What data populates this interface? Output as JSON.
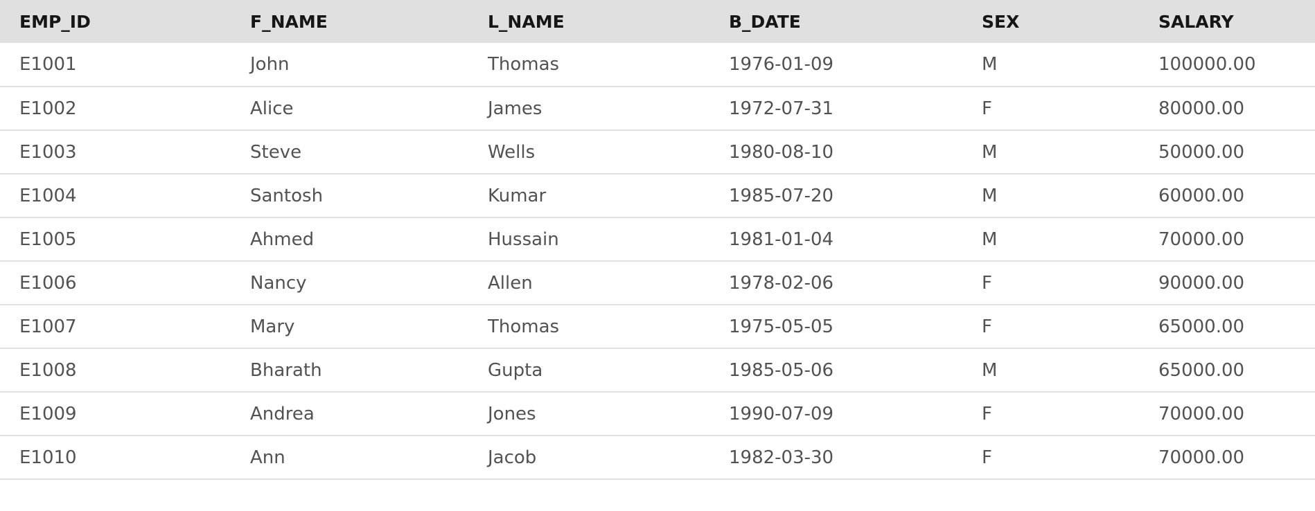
{
  "table": {
    "headers": [
      "EMP_ID",
      "F_NAME",
      "L_NAME",
      "B_DATE",
      "SEX",
      "SALARY"
    ],
    "rows": [
      [
        "E1001",
        "John",
        "Thomas",
        "1976-01-09",
        "M",
        "100000.00"
      ],
      [
        "E1002",
        "Alice",
        "James",
        "1972-07-31",
        "F",
        "80000.00"
      ],
      [
        "E1003",
        "Steve",
        "Wells",
        "1980-08-10",
        "M",
        "50000.00"
      ],
      [
        "E1004",
        "Santosh",
        "Kumar",
        "1985-07-20",
        "M",
        "60000.00"
      ],
      [
        "E1005",
        "Ahmed",
        "Hussain",
        "1981-01-04",
        "M",
        "70000.00"
      ],
      [
        "E1006",
        "Nancy",
        "Allen",
        "1978-02-06",
        "F",
        "90000.00"
      ],
      [
        "E1007",
        "Mary",
        "Thomas",
        "1975-05-05",
        "F",
        "65000.00"
      ],
      [
        "E1008",
        "Bharath",
        "Gupta",
        "1985-05-06",
        "M",
        "65000.00"
      ],
      [
        "E1009",
        "Andrea",
        "Jones",
        "1990-07-09",
        "F",
        "70000.00"
      ],
      [
        "E1010",
        "Ann",
        "Jacob",
        "1982-03-30",
        "F",
        "70000.00"
      ]
    ]
  }
}
